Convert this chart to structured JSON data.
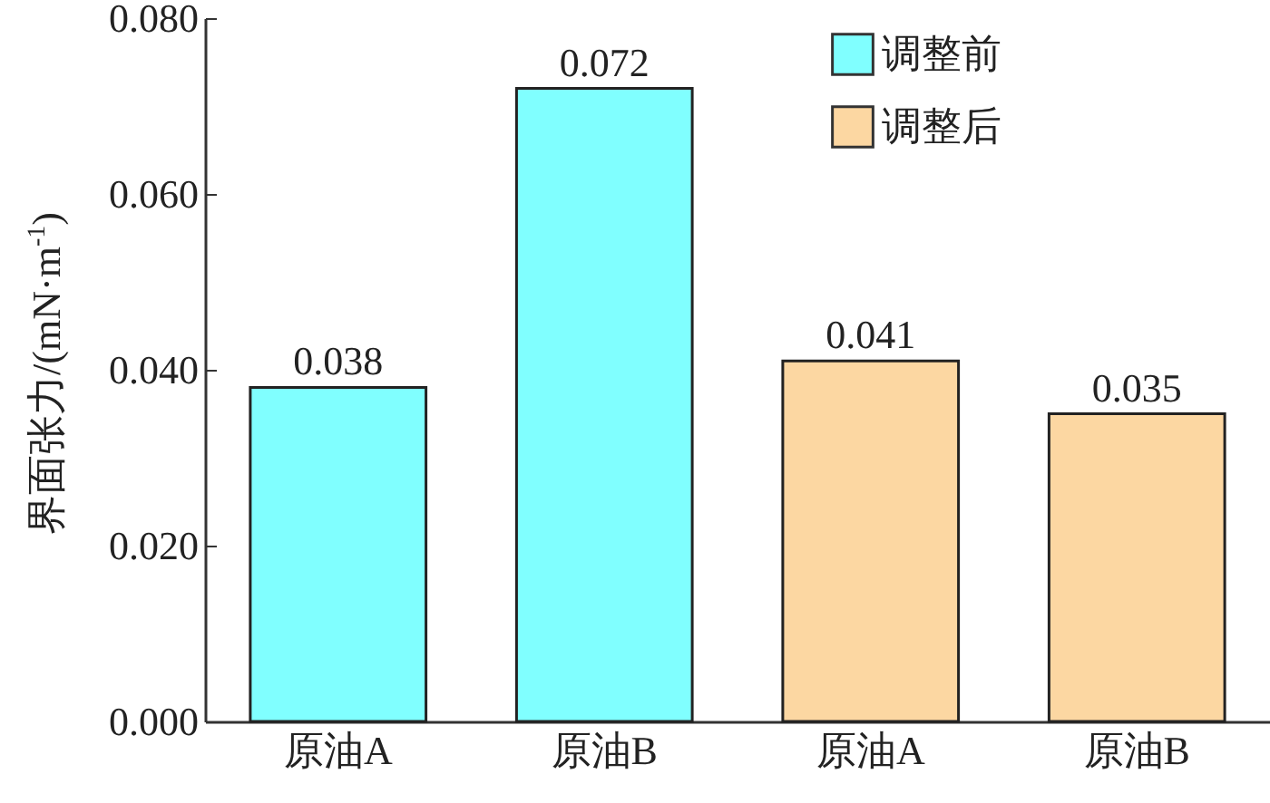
{
  "chart_data": {
    "type": "bar",
    "ylabel": "界面张力/(mN·m$^{-1}$)",
    "categories": [
      "原油A",
      "原油B",
      "原油A",
      "原油B"
    ],
    "series": [
      {
        "name": "调整前",
        "color": "#80ffff",
        "values": [
          0.038,
          0.072,
          null,
          null
        ]
      },
      {
        "name": "调整后",
        "color": "#fcd7a2",
        "values": [
          null,
          null,
          0.041,
          0.035
        ]
      }
    ],
    "ylim": [
      0,
      0.08
    ],
    "yticks": [
      {
        "value": 0,
        "label": "0.000"
      },
      {
        "value": 0.02,
        "label": "0.020"
      },
      {
        "value": 0.04,
        "label": "0.040"
      },
      {
        "value": 0.06,
        "label": "0.060"
      },
      {
        "value": 0.08,
        "label": "0.080"
      }
    ],
    "data_labels": true,
    "legend": "top right",
    "grid": false
  }
}
